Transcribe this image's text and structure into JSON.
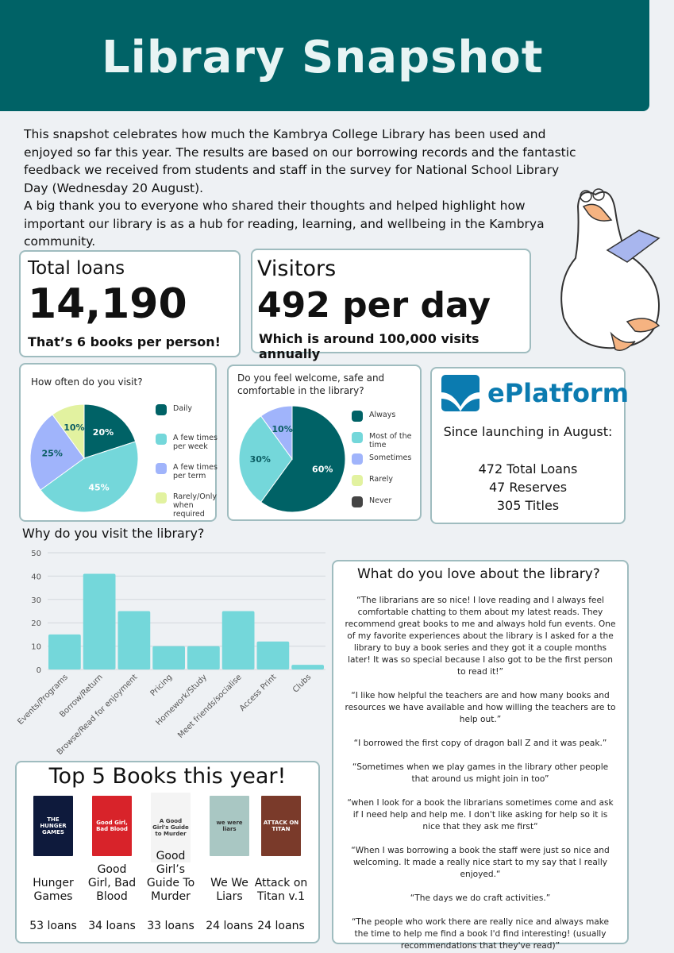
{
  "header": {
    "title": "Library Snapshot",
    "color": "#006266"
  },
  "intro": {
    "paragraph1": "This snapshot celebrates how much the Kambrya College Library has been used and enjoyed so far this year. The results are based on our borrowing records and the fantastic feedback we received from students and staff in the survey for National School Library Day (Wednesday 20 August).",
    "paragraph2": "A big thank you to everyone who shared their thoughts and helped highlight how important our library is as a hub for reading, learning, and wellbeing in the Kambrya community."
  },
  "stats": {
    "loans": {
      "label": "Total loans",
      "value": "14,190",
      "note": "That’s 6 books per person!"
    },
    "visitors": {
      "label": "Visitors",
      "value": "492 per day",
      "note": "Which is around 100,000 visits annually"
    }
  },
  "eplatform": {
    "logo_text": "ePlatform",
    "since": "Since launching in August:",
    "lines": [
      "472 Total Loans",
      "47 Reserves",
      "305 Titles"
    ]
  },
  "chart_data": [
    {
      "type": "pie",
      "title": "How often do you visit?",
      "legend": "right",
      "slices": [
        {
          "name": "Daily",
          "value": 20,
          "label": "20%",
          "color": "#006266"
        },
        {
          "name": "A few times per week",
          "value": 45,
          "label": "45%",
          "color": "#74d7da"
        },
        {
          "name": "A few times per term",
          "value": 25,
          "label": "25%",
          "color": "#a0b4fb"
        },
        {
          "name": "Rarely/Only when required",
          "value": 10,
          "label": "10%",
          "color": "#e2f2a0"
        }
      ]
    },
    {
      "type": "pie",
      "title": "Do you feel welcome, safe and comfortable in the library?",
      "legend": "right",
      "slices": [
        {
          "name": "Always",
          "value": 60,
          "label": "60%",
          "color": "#006266"
        },
        {
          "name": "Most of the time",
          "value": 30,
          "label": "30%",
          "color": "#74d7da"
        },
        {
          "name": "Sometimes",
          "value": 10,
          "label": "10%",
          "color": "#a0b4fb"
        },
        {
          "name": "Rarely",
          "value": 0,
          "label": "",
          "color": "#e2f2a0"
        },
        {
          "name": "Never",
          "value": 0,
          "label": "",
          "color": "#444444"
        }
      ]
    },
    {
      "type": "bar",
      "title": "Why do you visit the library?",
      "ylim": [
        0,
        50
      ],
      "yticks": [
        0,
        10,
        20,
        30,
        40,
        50
      ],
      "grid": true,
      "color": "#74d7da",
      "categories": [
        "Events/Programs",
        "Borrow/Return",
        "Browse/Read for enjoyment",
        "Pricing",
        "Homework/Study",
        "Meet friends/socialise",
        "Access Print",
        "Clubs"
      ],
      "values": [
        15,
        41,
        25,
        10,
        10,
        25,
        12,
        2
      ]
    }
  ],
  "love": {
    "title": "What do you love about the library?",
    "quotes": [
      "“The librarians are so nice! I love reading and I always feel comfortable chatting to them about my latest reads. They recommend great books to me and always hold fun events. One of my favorite experiences about the library is I asked for a the library to buy a book series and they got it a couple months later! It was so special because I also got to be the first person to read it!”",
      "“I like how helpful the teachers are and how many books and resources we have available and how willing the teachers are to help out.”",
      "“I borrowed the first copy of dragon ball Z and it was peak.”",
      "“Sometimes when we play games in the library other people that around us might join in too”",
      "“when I look for a book the librarians sometimes come and ask if I need help and help me. I don't like asking for help so it is nice that they ask me first“",
      "“When I was borrowing a book the staff were just so nice and welcoming. It made a really nice start to my say that I really enjoyed.“",
      "“The days we do craft activities.”",
      "“The people who work there are really nice and always make the time to help me find a book I'd find interesting! (usually recommendations that they've read)”"
    ]
  },
  "books": {
    "title": "Top 5 Books this year!",
    "items": [
      {
        "title": "Hunger Games",
        "loans": "53 loans",
        "cover_text": "THE HUNGER GAMES",
        "cover_color": "#0e1a3c"
      },
      {
        "title": "Good Girl, Bad Blood",
        "loans": "34 loans",
        "cover_text": "Good Girl, Bad Blood",
        "cover_color": "#d8232a"
      },
      {
        "title": "Good Girl’s Guide To Murder",
        "loans": "33 loans",
        "cover_text": "A Good Girl's Guide to Murder",
        "cover_color": "#f4f4f4"
      },
      {
        "title": "We We Liars",
        "loans": "24 loans",
        "cover_text": "we were liars",
        "cover_color": "#a9c7c3"
      },
      {
        "title": "Attack on Titan v.1",
        "loans": "24 loans",
        "cover_text": "ATTACK ON TITAN",
        "cover_color": "#7a3a2a"
      }
    ]
  }
}
